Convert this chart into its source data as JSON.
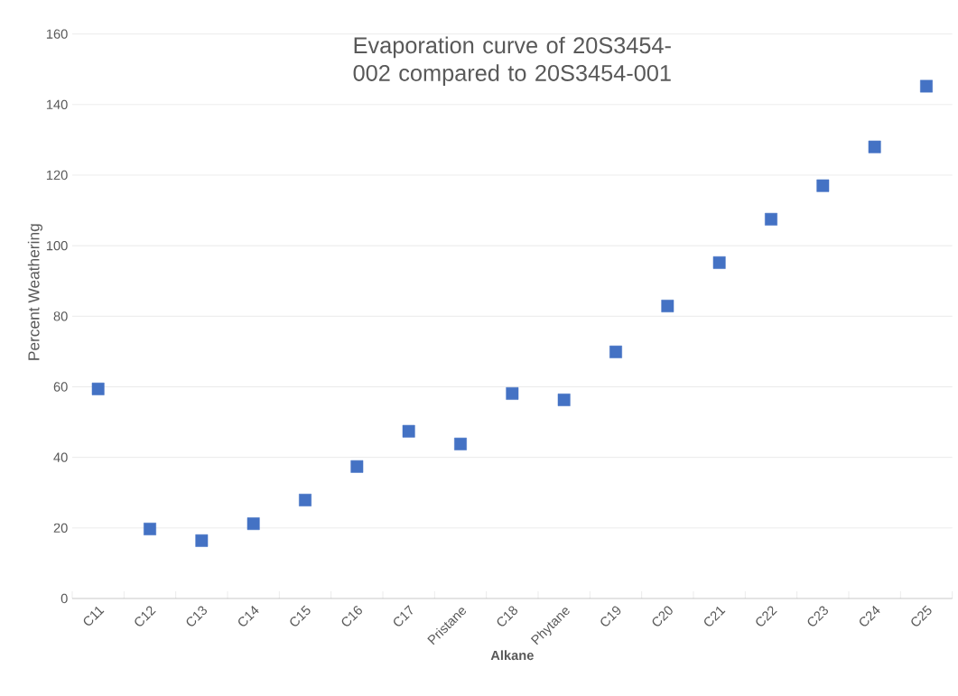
{
  "chart_data": {
    "type": "scatter",
    "title": "Evaporation curve of 20S3454-002 compared to 20S3454-001",
    "xlabel": "Alkane",
    "ylabel": "Percent Weathering",
    "categories": [
      "C11",
      "C12",
      "C13",
      "C14",
      "C15",
      "C16",
      "C17",
      "Pristane",
      "C18",
      "Phytane",
      "C19",
      "C20",
      "C21",
      "C22",
      "C23",
      "C24",
      "C25"
    ],
    "values": [
      59.4,
      19.7,
      16.4,
      21.2,
      27.9,
      37.4,
      47.4,
      43.8,
      58.1,
      56.3,
      69.9,
      82.9,
      95.2,
      107.5,
      117.0,
      128.0,
      145.2
    ],
    "color": "#4472c4",
    "marker": "square",
    "ylim": [
      0,
      160
    ],
    "yticks": [
      0,
      20,
      40,
      60,
      80,
      100,
      120,
      140,
      160
    ],
    "grid": "y"
  }
}
